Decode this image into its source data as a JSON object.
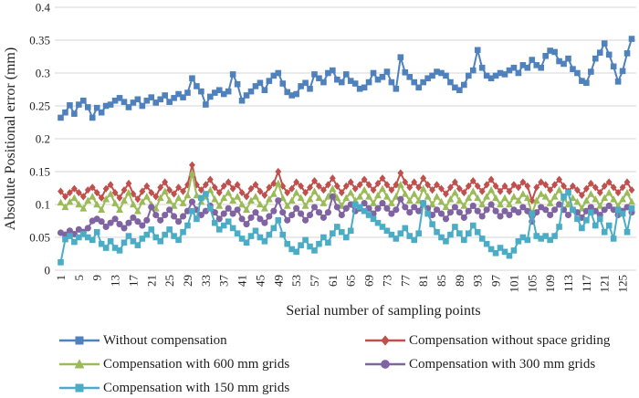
{
  "figure": {
    "background": "#ffffff",
    "text_color": "#1f1f1f"
  },
  "chart_data": {
    "type": "line",
    "title": "",
    "xlabel": "Serial number of sampling points",
    "ylabel": "Absolute Positional error (mm)",
    "ylim": [
      0,
      0.4
    ],
    "ytick_step": 0.05,
    "yticks": [
      "0",
      "0.05",
      "0.1",
      "0.15",
      "0.2",
      "0.25",
      "0.3",
      "0.35",
      "0.4"
    ],
    "xticks": [
      1,
      5,
      9,
      13,
      17,
      21,
      25,
      29,
      33,
      37,
      41,
      45,
      49,
      53,
      57,
      61,
      65,
      69,
      73,
      77,
      81,
      85,
      89,
      93,
      97,
      101,
      105,
      109,
      113,
      117,
      121,
      125
    ],
    "x_start": 1,
    "x_end": 127,
    "grid": "horizontal",
    "gridline_color": "#d6d6d6",
    "legend": {
      "position": "bottom",
      "columns": 2
    },
    "series": [
      {
        "name": "Without compensation",
        "color": "#4F81BD",
        "marker": "square",
        "values": [
          0.232,
          0.24,
          0.251,
          0.238,
          0.252,
          0.258,
          0.248,
          0.232,
          0.247,
          0.24,
          0.25,
          0.252,
          0.258,
          0.262,
          0.256,
          0.248,
          0.255,
          0.26,
          0.25,
          0.258,
          0.263,
          0.255,
          0.26,
          0.266,
          0.256,
          0.262,
          0.268,
          0.263,
          0.27,
          0.292,
          0.28,
          0.272,
          0.252,
          0.264,
          0.27,
          0.274,
          0.268,
          0.272,
          0.298,
          0.283,
          0.258,
          0.266,
          0.272,
          0.28,
          0.285,
          0.274,
          0.288,
          0.296,
          0.3,
          0.284,
          0.271,
          0.266,
          0.268,
          0.28,
          0.285,
          0.276,
          0.298,
          0.292,
          0.286,
          0.3,
          0.304,
          0.29,
          0.286,
          0.298,
          0.288,
          0.284,
          0.276,
          0.278,
          0.286,
          0.3,
          0.29,
          0.294,
          0.302,
          0.286,
          0.276,
          0.324,
          0.301,
          0.294,
          0.286,
          0.278,
          0.286,
          0.292,
          0.296,
          0.302,
          0.3,
          0.296,
          0.286,
          0.278,
          0.274,
          0.282,
          0.296,
          0.304,
          0.335,
          0.308,
          0.296,
          0.292,
          0.296,
          0.3,
          0.298,
          0.304,
          0.308,
          0.3,
          0.312,
          0.308,
          0.32,
          0.312,
          0.308,
          0.326,
          0.334,
          0.332,
          0.318,
          0.314,
          0.322,
          0.306,
          0.3,
          0.288,
          0.285,
          0.302,
          0.322,
          0.331,
          0.345,
          0.328,
          0.31,
          0.287,
          0.303,
          0.33,
          0.352
        ]
      },
      {
        "name": "Compensation without space griding",
        "color": "#C0504D",
        "marker": "diamond",
        "values": [
          0.12,
          0.112,
          0.118,
          0.124,
          0.118,
          0.112,
          0.122,
          0.126,
          0.118,
          0.11,
          0.124,
          0.13,
          0.118,
          0.11,
          0.122,
          0.132,
          0.116,
          0.108,
          0.12,
          0.128,
          0.118,
          0.112,
          0.126,
          0.134,
          0.122,
          0.116,
          0.126,
          0.12,
          0.13,
          0.16,
          0.13,
          0.122,
          0.13,
          0.138,
          0.126,
          0.118,
          0.128,
          0.134,
          0.124,
          0.13,
          0.118,
          0.112,
          0.124,
          0.13,
          0.12,
          0.114,
          0.126,
          0.132,
          0.15,
          0.128,
          0.118,
          0.124,
          0.134,
          0.128,
          0.118,
          0.126,
          0.136,
          0.128,
          0.122,
          0.13,
          0.14,
          0.128,
          0.118,
          0.128,
          0.134,
          0.124,
          0.13,
          0.138,
          0.13,
          0.122,
          0.132,
          0.14,
          0.13,
          0.122,
          0.13,
          0.148,
          0.134,
          0.126,
          0.134,
          0.126,
          0.14,
          0.13,
          0.122,
          0.13,
          0.124,
          0.116,
          0.126,
          0.134,
          0.124,
          0.118,
          0.128,
          0.136,
          0.128,
          0.12,
          0.13,
          0.138,
          0.128,
          0.12,
          0.128,
          0.12,
          0.13,
          0.126,
          0.134,
          0.128,
          0.106,
          0.126,
          0.134,
          0.13,
          0.122,
          0.13,
          0.138,
          0.128,
          0.12,
          0.128,
          0.122,
          0.114,
          0.124,
          0.132,
          0.126,
          0.118,
          0.128,
          0.134,
          0.126,
          0.118,
          0.126,
          0.134,
          0.122
        ]
      },
      {
        "name": "Compensation with 600 mm grids",
        "color": "#9BBB59",
        "marker": "triangle",
        "values": [
          0.103,
          0.096,
          0.104,
          0.11,
          0.1,
          0.094,
          0.106,
          0.112,
          0.1,
          0.092,
          0.108,
          0.116,
          0.102,
          0.092,
          0.106,
          0.118,
          0.1,
          0.09,
          0.104,
          0.112,
          0.1,
          0.094,
          0.11,
          0.12,
          0.106,
          0.098,
          0.11,
          0.102,
          0.114,
          0.148,
          0.114,
          0.104,
          0.112,
          0.122,
          0.108,
          0.098,
          0.11,
          0.118,
          0.106,
          0.112,
          0.1,
          0.092,
          0.106,
          0.112,
          0.1,
          0.094,
          0.108,
          0.116,
          0.132,
          0.11,
          0.098,
          0.106,
          0.118,
          0.11,
          0.098,
          0.108,
          0.12,
          0.11,
          0.102,
          0.112,
          0.124,
          0.11,
          0.098,
          0.11,
          0.118,
          0.106,
          0.112,
          0.122,
          0.112,
          0.102,
          0.114,
          0.124,
          0.112,
          0.102,
          0.112,
          0.13,
          0.116,
          0.106,
          0.116,
          0.106,
          0.124,
          0.112,
          0.1,
          0.112,
          0.104,
          0.096,
          0.108,
          0.118,
          0.106,
          0.098,
          0.11,
          0.12,
          0.11,
          0.1,
          0.112,
          0.122,
          0.11,
          0.1,
          0.11,
          0.1,
          0.112,
          0.106,
          0.116,
          0.11,
          0.086,
          0.106,
          0.116,
          0.112,
          0.102,
          0.112,
          0.122,
          0.11,
          0.1,
          0.11,
          0.104,
          0.094,
          0.106,
          0.116,
          0.108,
          0.098,
          0.11,
          0.118,
          0.108,
          0.098,
          0.108,
          0.118,
          0.104
        ]
      },
      {
        "name": "Compensation with 300 mm grids",
        "color": "#8064A2",
        "marker": "circle",
        "values": [
          0.057,
          0.054,
          0.06,
          0.055,
          0.062,
          0.058,
          0.064,
          0.075,
          0.078,
          0.074,
          0.066,
          0.072,
          0.078,
          0.07,
          0.064,
          0.072,
          0.08,
          0.074,
          0.068,
          0.076,
          0.096,
          0.084,
          0.076,
          0.084,
          0.092,
          0.082,
          0.074,
          0.082,
          0.09,
          0.104,
          0.092,
          0.084,
          0.09,
          0.098,
          0.088,
          0.078,
          0.086,
          0.094,
          0.086,
          0.092,
          0.078,
          0.07,
          0.08,
          0.088,
          0.078,
          0.072,
          0.082,
          0.09,
          0.106,
          0.088,
          0.076,
          0.084,
          0.094,
          0.086,
          0.076,
          0.084,
          0.096,
          0.088,
          0.08,
          0.088,
          0.112,
          0.096,
          0.084,
          0.094,
          0.1,
          0.09,
          0.094,
          0.102,
          0.094,
          0.086,
          0.094,
          0.102,
          0.094,
          0.086,
          0.092,
          0.108,
          0.096,
          0.088,
          0.096,
          0.09,
          0.102,
          0.094,
          0.084,
          0.092,
          0.086,
          0.078,
          0.088,
          0.096,
          0.088,
          0.08,
          0.09,
          0.098,
          0.09,
          0.082,
          0.092,
          0.1,
          0.09,
          0.082,
          0.09,
          0.084,
          0.092,
          0.088,
          0.096,
          0.09,
          0.074,
          0.088,
          0.096,
          0.092,
          0.084,
          0.092,
          0.1,
          0.092,
          0.084,
          0.092,
          0.088,
          0.08,
          0.09,
          0.096,
          0.09,
          0.084,
          0.092,
          0.098,
          0.092,
          0.084,
          0.09,
          0.096,
          0.088
        ]
      },
      {
        "name": "Compensation with 150 mm grids",
        "color": "#4BACC6",
        "marker": "square",
        "values": [
          0.012,
          0.047,
          0.052,
          0.043,
          0.05,
          0.055,
          0.05,
          0.046,
          0.058,
          0.04,
          0.034,
          0.044,
          0.034,
          0.03,
          0.042,
          0.052,
          0.044,
          0.038,
          0.048,
          0.054,
          0.062,
          0.05,
          0.044,
          0.054,
          0.062,
          0.052,
          0.046,
          0.058,
          0.068,
          0.09,
          0.078,
          0.11,
          0.116,
          0.094,
          0.072,
          0.062,
          0.068,
          0.074,
          0.064,
          0.056,
          0.048,
          0.042,
          0.052,
          0.06,
          0.05,
          0.044,
          0.054,
          0.064,
          0.076,
          0.054,
          0.04,
          0.032,
          0.028,
          0.038,
          0.046,
          0.036,
          0.03,
          0.04,
          0.05,
          0.042,
          0.056,
          0.066,
          0.058,
          0.05,
          0.06,
          0.1,
          0.096,
          0.09,
          0.084,
          0.078,
          0.072,
          0.066,
          0.06,
          0.054,
          0.048,
          0.056,
          0.064,
          0.052,
          0.046,
          0.056,
          0.102,
          0.086,
          0.07,
          0.058,
          0.05,
          0.044,
          0.054,
          0.066,
          0.056,
          0.046,
          0.056,
          0.068,
          0.058,
          0.048,
          0.04,
          0.032,
          0.026,
          0.034,
          0.028,
          0.022,
          0.03,
          0.044,
          0.05,
          0.046,
          0.086,
          0.052,
          0.048,
          0.052,
          0.046,
          0.052,
          0.066,
          0.112,
          0.118,
          0.092,
          0.078,
          0.064,
          0.076,
          0.088,
          0.068,
          0.078,
          0.058,
          0.068,
          0.048,
          0.092,
          0.086,
          0.058,
          0.094
        ]
      }
    ]
  }
}
